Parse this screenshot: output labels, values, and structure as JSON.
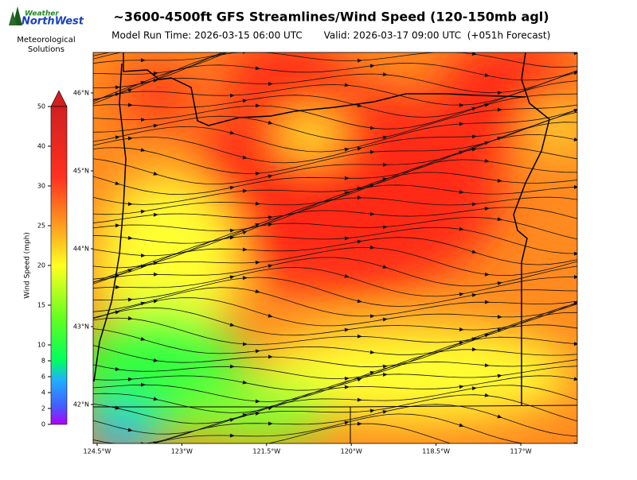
{
  "logo": {
    "line1": "Weather",
    "line2": "NorthWest",
    "org1": "Meteorological",
    "org2": "Solutions"
  },
  "title": "~3600-4500ft GFS Streamlines/Wind Speed (120-150mb agl)",
  "model_run": "Model Run Time: 2026-03-15 06:00 UTC",
  "valid": "Valid: 2026-03-17 09:00 UTC  (+051h Forecast)",
  "colorbar": {
    "label": "Wind Speed (mph)",
    "range": [
      0,
      50
    ],
    "ticks": [
      0,
      2,
      4,
      6,
      8,
      10,
      15,
      20,
      25,
      30,
      40,
      50
    ]
  },
  "map": {
    "xlim": [
      -124.57,
      -116.0
    ],
    "ylim": [
      41.5,
      46.52
    ],
    "xticks": [
      {
        "value": -124.5,
        "label": "124.5°W"
      },
      {
        "value": -123,
        "label": "123°W"
      },
      {
        "value": -121.5,
        "label": "121.5°W"
      },
      {
        "value": -120,
        "label": "120°W"
      },
      {
        "value": -118.5,
        "label": "118.5°W"
      },
      {
        "value": -117,
        "label": "117°W"
      }
    ],
    "yticks": [
      {
        "value": 46,
        "label": "46°N"
      },
      {
        "value": 45,
        "label": "45°N"
      },
      {
        "value": 44,
        "label": "44°N"
      },
      {
        "value": 43,
        "label": "43°N"
      },
      {
        "value": 42,
        "label": "42°N"
      }
    ]
  }
}
